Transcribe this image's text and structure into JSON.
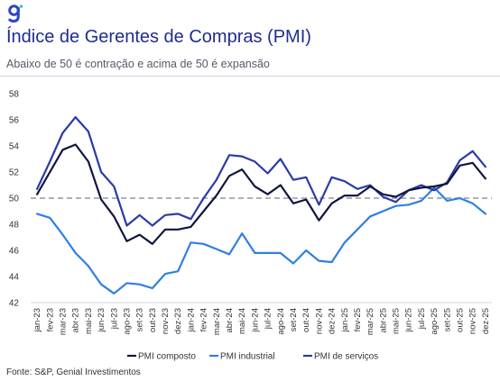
{
  "header": {
    "logo_icon": "genial-g-logo",
    "title": "Índice de Gerentes de Compras (PMI)",
    "subtitle": "Abaixo de 50 é contração e acima de 50 é expansão"
  },
  "footer": {
    "source": "Fonte: S&P, Genial Investimentos"
  },
  "chart_data": {
    "type": "line",
    "categories": [
      "jan-23",
      "fev-23",
      "mar-23",
      "abr-23",
      "mai-23",
      "jun-23",
      "jul-23",
      "ago-23",
      "set-23",
      "out-23",
      "nov-23",
      "dez-23",
      "jan-24",
      "fev-24",
      "mar-24",
      "abr-24",
      "mai-24",
      "jun-24",
      "jul-24",
      "ago-24",
      "set-24",
      "out-24",
      "nov-24",
      "dez-24",
      "jan-25",
      "fev-25",
      "mar-25",
      "abr-25",
      "mai-25",
      "jun-25",
      "jul-25",
      "ago-25",
      "set-25",
      "out-25",
      "nov-25",
      "dez-25"
    ],
    "ylim": [
      42,
      58
    ],
    "yticks": [
      42,
      44,
      46,
      48,
      50,
      52,
      54,
      56,
      58
    ],
    "reference_line": 50,
    "grid": false,
    "legend_position": "bottom",
    "series": [
      {
        "name": "PMI composto",
        "color": "#10163f",
        "values": [
          50.3,
          52.0,
          53.7,
          54.1,
          52.8,
          49.9,
          48.6,
          46.7,
          47.2,
          46.5,
          47.6,
          47.6,
          47.8,
          49.0,
          50.2,
          51.7,
          52.2,
          50.9,
          50.3,
          51.0,
          49.6,
          49.9,
          48.3,
          49.6,
          50.2,
          50.2,
          50.9,
          50.3,
          50.1,
          50.6,
          50.8,
          50.9,
          51.1,
          52.5,
          52.7,
          51.5
        ]
      },
      {
        "name": "PMI industrial",
        "color": "#2f7fe0",
        "values": [
          48.8,
          48.5,
          47.2,
          45.8,
          44.8,
          43.4,
          42.7,
          43.5,
          43.4,
          43.1,
          44.2,
          44.4,
          46.6,
          46.5,
          46.1,
          45.7,
          47.3,
          45.8,
          45.8,
          45.8,
          45.0,
          46.0,
          45.2,
          45.1,
          46.6,
          47.6,
          48.6,
          49.0,
          49.4,
          49.5,
          49.8,
          50.8,
          49.8,
          50.0,
          49.6,
          48.8
        ]
      },
      {
        "name": "PMI de serviços",
        "color": "#2b3ba8",
        "values": [
          50.7,
          52.8,
          55.0,
          56.2,
          55.1,
          52.0,
          50.9,
          47.9,
          48.7,
          47.9,
          48.7,
          48.8,
          48.4,
          50.0,
          51.4,
          53.3,
          53.2,
          52.8,
          51.9,
          53.0,
          51.4,
          51.6,
          49.5,
          51.6,
          51.3,
          50.7,
          51.0,
          50.1,
          49.7,
          50.6,
          51.0,
          50.6,
          51.2,
          52.9,
          53.6,
          52.4
        ]
      }
    ]
  }
}
